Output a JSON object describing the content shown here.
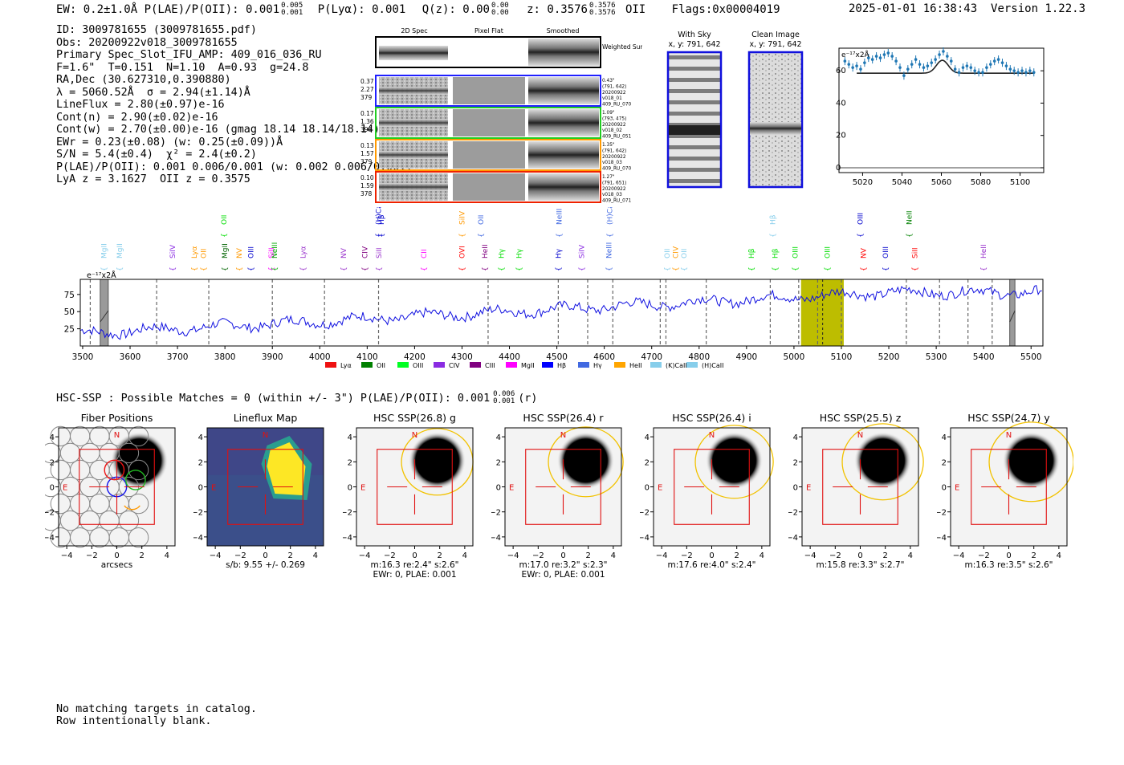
{
  "header": {
    "summary_line": "EW: 0.2±1.0Å  P(LAE)/P(OII): 0.001",
    "summary_sup": "0.005",
    "summary_sub": "0.001",
    "plya": "P(Lyα): 0.001",
    "qz": "Q(z): 0.00",
    "qz_sup": "0.00",
    "qz_sub": "0.00",
    "z": "z: 0.3576",
    "z_sup": "0.3576",
    "z_sub": "0.3576",
    "z_line": "OII",
    "flags": "Flags:0x00004019",
    "timestamp": "2025-01-01 16:38:43",
    "version": "Version 1.22.3"
  },
  "info": {
    "lines": [
      "ID: 3009781655 (3009781655.pdf)",
      "Obs: 20200922v018_3009781655",
      "Primary Spec_Slot_IFU_AMP: 409_016_036_RU",
      "F=1.6\"  T=0.151  N=1.10  A=0.93  g=24.8",
      "RA,Dec (30.627310,0.390880)",
      "λ = 5060.52Å  σ = 2.94(±1.14)Å",
      "LineFlux = 2.80(±0.97)e-16",
      "Cont(n) = 2.90(±0.02)e-16",
      "Cont(w) = 2.70(±0.00)e-16 (gmag 18.14 18.14/18.14)",
      "EWr = 0.23(±0.08) (w: 0.25(±0.09))Å",
      "S/N = 5.4(±0.4)  χ² = 2.4(±0.2)",
      "P(LAE)/P(OII): 0.001 0.006/0.001 (w: 0.002 0.006/0.001)",
      "LyA z = 3.1627  OII z = 0.3575"
    ]
  },
  "cutouts": {
    "col_headers": [
      "2D Spec",
      "Pixel Flat",
      "Smoothed"
    ],
    "weighted_label": "Weighted Sum",
    "rows": [
      {
        "left": [
          "0.37",
          "2.27",
          "379"
        ],
        "right": [
          "0.43\"",
          "(791, 642)",
          "20200922",
          "v018_01",
          "409_RU_070"
        ],
        "color": "#1f1fff"
      },
      {
        "left": [
          "0.17",
          "1.36",
          "398"
        ],
        "right": [
          "1.09\"",
          "(793, 475)",
          "20200922",
          "v018_02",
          "409_RU_051"
        ],
        "color": "#22cc22"
      },
      {
        "left": [
          "0.13",
          "1.57",
          "379"
        ],
        "right": [
          "1.35\"",
          "(791, 642)",
          "20200922",
          "v018_03",
          "409_RU_070"
        ],
        "color": "#ff9900"
      },
      {
        "left": [
          "0.10",
          "1.59",
          "378"
        ],
        "right": [
          "1.27\"",
          "(791, 651)",
          "20200922",
          "v018_03",
          "409_RU_071"
        ],
        "color": "#ee2200"
      }
    ],
    "with_sky_title": "With Sky",
    "with_sky_xy": "x, y: 791, 642",
    "clean_title": "Clean Image",
    "clean_xy": "x, y: 791, 642"
  },
  "zoom_plot": {
    "unit_label": "e⁻¹⁷x2Å",
    "x_ticks": [
      "5020",
      "5040",
      "5060",
      "5080",
      "5100"
    ],
    "y_ticks": [
      "0",
      "20",
      "40",
      "60"
    ],
    "xlim": [
      5008,
      5112
    ],
    "ylim": [
      -3,
      74
    ],
    "continuum": 58.5,
    "line_center": 5060.5,
    "line_amp": 8,
    "line_sigma": 3,
    "data_x": [
      5011,
      5013,
      5015,
      5017,
      5019,
      5021,
      5023,
      5025,
      5027,
      5029,
      5031,
      5033,
      5035,
      5037,
      5039,
      5041,
      5043,
      5045,
      5047,
      5049,
      5051,
      5053,
      5055,
      5057,
      5059,
      5061,
      5063,
      5065,
      5067,
      5069,
      5071,
      5073,
      5075,
      5077,
      5079,
      5081,
      5083,
      5085,
      5087,
      5089,
      5091,
      5093,
      5095,
      5097,
      5099,
      5101,
      5103,
      5105,
      5107
    ],
    "data_y": [
      66,
      64,
      62,
      63,
      61,
      65,
      68,
      67,
      69,
      68,
      70,
      71,
      69,
      66,
      62,
      57,
      61,
      64,
      67,
      64,
      62,
      63,
      65,
      67,
      70,
      72,
      69,
      66,
      61,
      59,
      62,
      63,
      62,
      60,
      59,
      59,
      62,
      64,
      66,
      67,
      65,
      63,
      61,
      60,
      59,
      60,
      59,
      60,
      59
    ]
  },
  "spectrum": {
    "unit_label": "e⁻¹⁷x2Å",
    "x_ticks": [
      "3500",
      "3600",
      "3700",
      "3800",
      "3900",
      "4000",
      "4100",
      "4200",
      "4300",
      "4400",
      "4500",
      "4600",
      "4700",
      "4800",
      "4900",
      "5000",
      "5100",
      "5200",
      "5300",
      "5400",
      "5500"
    ],
    "y_ticks": [
      "25",
      "50",
      "75"
    ],
    "xlim": [
      3495,
      5525
    ],
    "ylim": [
      0,
      97
    ],
    "dashed_lines": [
      3516,
      3656,
      3766,
      3900,
      4010,
      4124,
      4355,
      4503,
      4565,
      4618,
      4718,
      4730,
      4815,
      4950,
      5010,
      5050,
      5100,
      5237,
      5307,
      5367,
      5418
    ],
    "highlight_band": [
      5015,
      5105
    ],
    "line_center_marker": 5060.5,
    "hatched_bands": [
      [
        3537,
        3554
      ],
      [
        5455,
        5466
      ]
    ],
    "line_labels_low": [
      {
        "name": "MgII",
        "x": 3545,
        "color": "#87ceeb"
      },
      {
        "name": "MgII",
        "x": 3578,
        "color": "#87ceeb"
      },
      {
        "name": "SiIV",
        "x": 3690,
        "color": "#8a2be2"
      },
      {
        "name": "Lyα",
        "x": 3735,
        "color": "#ff9900"
      },
      {
        "name": "OII",
        "x": 3755,
        "color": "#ff9900"
      },
      {
        "name": "MgII",
        "x": 3800,
        "color": "#006400"
      },
      {
        "name": "NV",
        "x": 3830,
        "color": "#ff9900"
      },
      {
        "name": "OIII",
        "x": 3855,
        "color": "#0000cd"
      },
      {
        "name": "SiII",
        "x": 3898,
        "color": "#ff00ff"
      },
      {
        "name": "NeIII",
        "x": 3905,
        "color": "#00aa00"
      },
      {
        "name": "Lyα",
        "x": 3965,
        "color": "#9932cc"
      },
      {
        "name": "NV",
        "x": 4050,
        "color": "#9932cc"
      },
      {
        "name": "CIV",
        "x": 4095,
        "color": "#800080"
      },
      {
        "name": "SiII",
        "x": 4125,
        "color": "#9932cc"
      },
      {
        "name": "CII",
        "x": 4220,
        "color": "#ff00ff"
      },
      {
        "name": "OVI",
        "x": 4300,
        "color": "#ff0000"
      },
      {
        "name": "HeII",
        "x": 4348,
        "color": "#800080"
      },
      {
        "name": "Hγ",
        "x": 4383,
        "color": "#00dd00"
      },
      {
        "name": "Hγ",
        "x": 4420,
        "color": "#00dd00"
      },
      {
        "name": "Hγ",
        "x": 4503,
        "color": "#0000cd"
      },
      {
        "name": "SiIV",
        "x": 4552,
        "color": "#8a2be2"
      },
      {
        "name": "NeIII",
        "x": 4610,
        "color": "#4169e1"
      },
      {
        "name": "OII",
        "x": 4733,
        "color": "#87ceeb"
      },
      {
        "name": "CIV",
        "x": 4750,
        "color": "#ff9900"
      },
      {
        "name": "OII",
        "x": 4768,
        "color": "#87ceeb"
      },
      {
        "name": "Hβ",
        "x": 4910,
        "color": "#00dd00"
      },
      {
        "name": "Hβ",
        "x": 4960,
        "color": "#00dd00"
      },
      {
        "name": "OIII",
        "x": 5003,
        "color": "#00dd00"
      },
      {
        "name": "OIII",
        "x": 5070,
        "color": "#00dd00"
      },
      {
        "name": "NV",
        "x": 5147,
        "color": "#ff0000"
      },
      {
        "name": "OIII",
        "x": 5193,
        "color": "#0000cd"
      },
      {
        "name": "SiII",
        "x": 5255,
        "color": "#ff0000"
      },
      {
        "name": "HeII",
        "x": 5400,
        "color": "#9932cc"
      }
    ],
    "line_labels_high": [
      {
        "name": "OII",
        "x": 3798,
        "color": "#00dd00"
      },
      {
        "name": "(H)CaII",
        "x": 4124,
        "color": "#0000cd"
      },
      {
        "name": "Hβ",
        "x": 4130,
        "color": "#0000cd"
      },
      {
        "name": "SiIV",
        "x": 4300,
        "color": "#ff9900"
      },
      {
        "name": "OII",
        "x": 4340,
        "color": "#4169e1"
      },
      {
        "name": "NeIII",
        "x": 4505,
        "color": "#4169e1"
      },
      {
        "name": "(H)CaII",
        "x": 4612,
        "color": "#4169e1"
      },
      {
        "name": "Hβ",
        "x": 4955,
        "color": "#87ceeb"
      },
      {
        "name": "OIII",
        "x": 5140,
        "color": "#0000cd"
      },
      {
        "name": "NeII",
        "x": 5243,
        "color": "#008000"
      }
    ],
    "legend": [
      {
        "name": "Lyα",
        "color": "#ee1111"
      },
      {
        "name": "OII",
        "color": "#008000"
      },
      {
        "name": "OIII",
        "color": "#00ff22"
      },
      {
        "name": "CIV",
        "color": "#8a2be2"
      },
      {
        "name": "CIII",
        "color": "#800080"
      },
      {
        "name": "MgII",
        "color": "#ff00ff"
      },
      {
        "name": "Hβ",
        "color": "#0000ff"
      },
      {
        "name": "Hγ",
        "color": "#4169e1"
      },
      {
        "name": "HeII",
        "color": "#ffa500"
      },
      {
        "name": "(K)CaII",
        "color": "#87ceeb"
      },
      {
        "name": "(H)CaII",
        "color": "#87ceeb"
      }
    ]
  },
  "hsc_header": {
    "text": "HSC-SSP : Possible Matches = 0 (within +/- 3\")  P(LAE)/P(OII): 0.001",
    "sup": "0.006",
    "sub": "0.001",
    "suffix": "(r)"
  },
  "panels": [
    {
      "title": "Fiber Positions",
      "captions": [
        "arcsecs"
      ],
      "kind": "fibers"
    },
    {
      "title": "Lineflux Map",
      "captions": [
        "s/b: 9.55 +/- 0.269"
      ],
      "kind": "lineflux"
    },
    {
      "title": "HSC SSP(26.8) g",
      "captions": [
        "m:16.3  re:2.4\"  s:2.6\"",
        "EWr: 0, PLAE: 0.001"
      ],
      "kind": "band"
    },
    {
      "title": "HSC SSP(26.4) r",
      "captions": [
        "m:17.0  re:3.2\"  s:2.3\"",
        "EWr: 0, PLAE: 0.001"
      ],
      "kind": "band"
    },
    {
      "title": "HSC SSP(26.4) i",
      "captions": [
        "m:17.6  re:4.0\"  s:2.4\""
      ],
      "kind": "band"
    },
    {
      "title": "HSC SSP(25.5) z",
      "captions": [
        "m:15.8  re:3.3\"  s:2.7\""
      ],
      "kind": "band"
    },
    {
      "title": "HSC SSP(24.7) y",
      "captions": [
        "m:16.3  re:3.5\"  s:2.6\""
      ],
      "kind": "band"
    }
  ],
  "panel_axis": {
    "ticks": [
      "−4",
      "−2",
      "0",
      "2",
      "4"
    ],
    "north": "N",
    "east": "E"
  },
  "footer": {
    "line1": "No matching targets in catalog.",
    "line2": "Row intentionally blank."
  }
}
